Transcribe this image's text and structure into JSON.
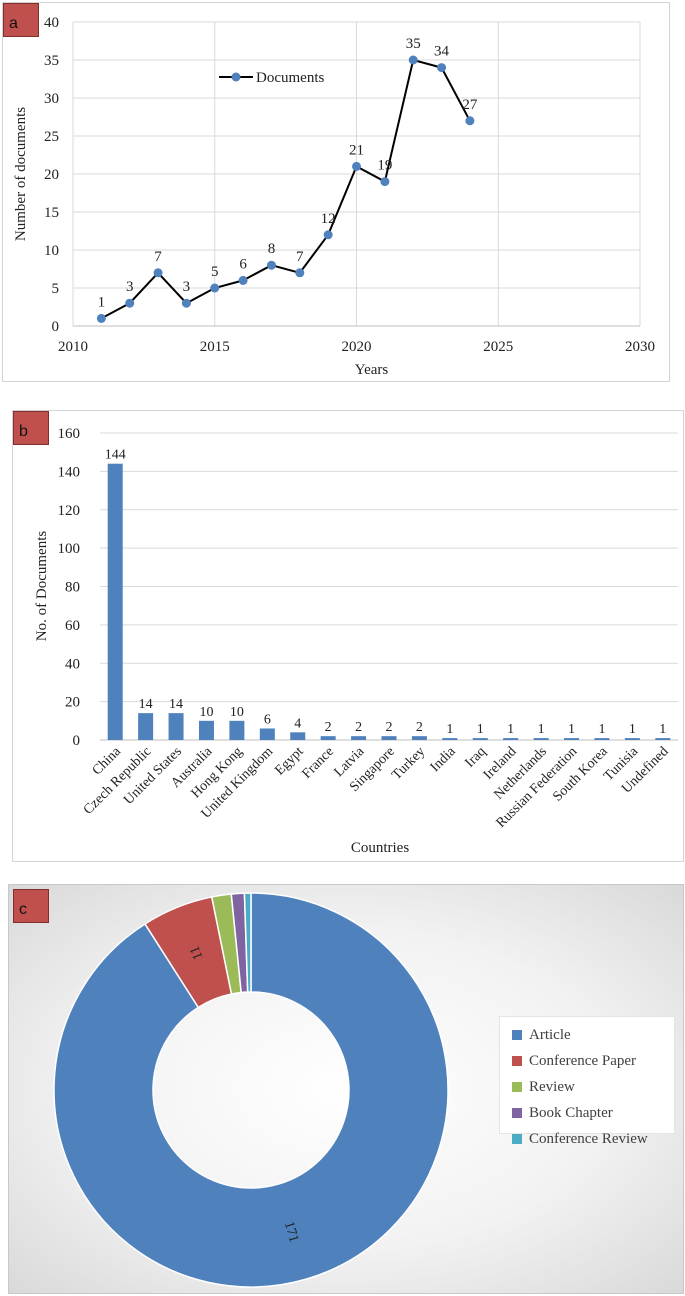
{
  "panels": {
    "a": {
      "tag": "a"
    },
    "b": {
      "tag": "b"
    },
    "c": {
      "tag": "c"
    }
  },
  "colors": {
    "line": "#000000",
    "marker": "#4f81bd",
    "bar": "#4f81bd",
    "grid": "#d9d9d9",
    "tag": "#c0504d"
  },
  "chart_data": [
    {
      "type": "line",
      "panel": "a",
      "title": "",
      "xlabel": "Years",
      "ylabel": "Number of documents",
      "xlim": [
        2010,
        2030
      ],
      "ylim": [
        0,
        40
      ],
      "xticks": [
        2010,
        2015,
        2020,
        2025,
        2030
      ],
      "yticks": [
        0,
        5,
        10,
        15,
        20,
        25,
        30,
        35,
        40
      ],
      "legend": {
        "position": "top-left",
        "entries": [
          "Documents"
        ]
      },
      "series": [
        {
          "name": "Documents",
          "x": [
            2011,
            2012,
            2013,
            2014,
            2015,
            2016,
            2017,
            2018,
            2019,
            2020,
            2021,
            2022,
            2023,
            2024
          ],
          "values": [
            1,
            3,
            7,
            3,
            5,
            6,
            8,
            7,
            12,
            21,
            19,
            35,
            34,
            27
          ]
        }
      ]
    },
    {
      "type": "bar",
      "panel": "b",
      "title": "",
      "xlabel": "Countries",
      "ylabel": "No. of Documents",
      "ylim": [
        0,
        160
      ],
      "yticks": [
        0,
        20,
        40,
        60,
        80,
        100,
        120,
        140,
        160
      ],
      "categories": [
        "China",
        "Czech Republic",
        "United States",
        "Australia",
        "Hong Kong",
        "United Kingdom",
        "Egypt",
        "France",
        "Latvia",
        "Singapore",
        "Turkey",
        "India",
        "Iraq",
        "Ireland",
        "Netherlands",
        "Russian Federation",
        "South Korea",
        "Tunisia",
        "Undefined"
      ],
      "values": [
        144,
        14,
        14,
        10,
        10,
        6,
        4,
        2,
        2,
        2,
        2,
        1,
        1,
        1,
        1,
        1,
        1,
        1,
        1
      ]
    },
    {
      "type": "pie",
      "panel": "c",
      "donut": true,
      "title": "",
      "legend": {
        "position": "right"
      },
      "slices": [
        {
          "label": "Article",
          "value": 171,
          "color": "#4f81bd",
          "shown_label": "171"
        },
        {
          "label": "Conference Paper",
          "value": 11,
          "color": "#c0504d",
          "shown_label": "11"
        },
        {
          "label": "Review",
          "value": 3,
          "color": "#9bbb59",
          "shown_label": ""
        },
        {
          "label": "Book Chapter",
          "value": 2,
          "color": "#8064a2",
          "shown_label": ""
        },
        {
          "label": "Conference Review",
          "value": 1,
          "color": "#4bacc6",
          "shown_label": ""
        }
      ]
    }
  ]
}
